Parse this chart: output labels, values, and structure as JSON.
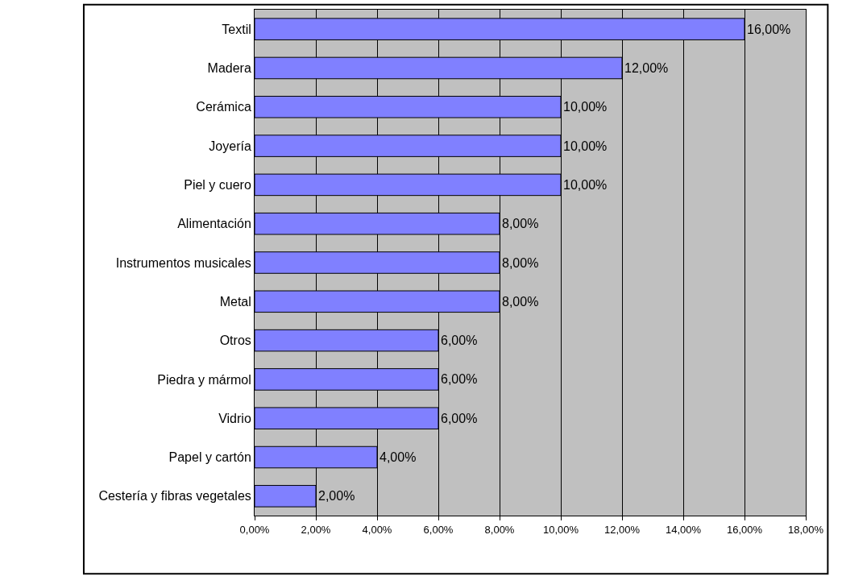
{
  "chart_data": {
    "type": "bar",
    "orientation": "horizontal",
    "categories": [
      "Textil",
      "Madera",
      "Cerámica",
      "Joyería",
      "Piel y cuero",
      "Alimentación",
      "Instrumentos musicales",
      "Metal",
      "Otros",
      "Piedra y mármol",
      "Vidrio",
      "Papel y cartón",
      "Cestería y fibras vegetales"
    ],
    "values": [
      16,
      12,
      10,
      10,
      10,
      8,
      8,
      8,
      6,
      6,
      6,
      4,
      2
    ],
    "value_labels": [
      "16,00%",
      "12,00%",
      "10,00%",
      "10,00%",
      "10,00%",
      "8,00%",
      "8,00%",
      "8,00%",
      "6,00%",
      "6,00%",
      "6,00%",
      "4,00%",
      "2,00%"
    ],
    "color": "#8080ff",
    "xlim": [
      0,
      18
    ],
    "xticks": [
      {
        "value": 0,
        "label": "0,00%"
      },
      {
        "value": 2,
        "label": "2,00%"
      },
      {
        "value": 4,
        "label": "4,00%"
      },
      {
        "value": 6,
        "label": "6,00%"
      },
      {
        "value": 8,
        "label": "8,00%"
      },
      {
        "value": 10,
        "label": "10,00%"
      },
      {
        "value": 12,
        "label": "12,00%"
      },
      {
        "value": 14,
        "label": "14,00%"
      },
      {
        "value": 16,
        "label": "16,00%"
      },
      {
        "value": 18,
        "label": "18,00%"
      }
    ],
    "grid": "x",
    "legend": false
  }
}
